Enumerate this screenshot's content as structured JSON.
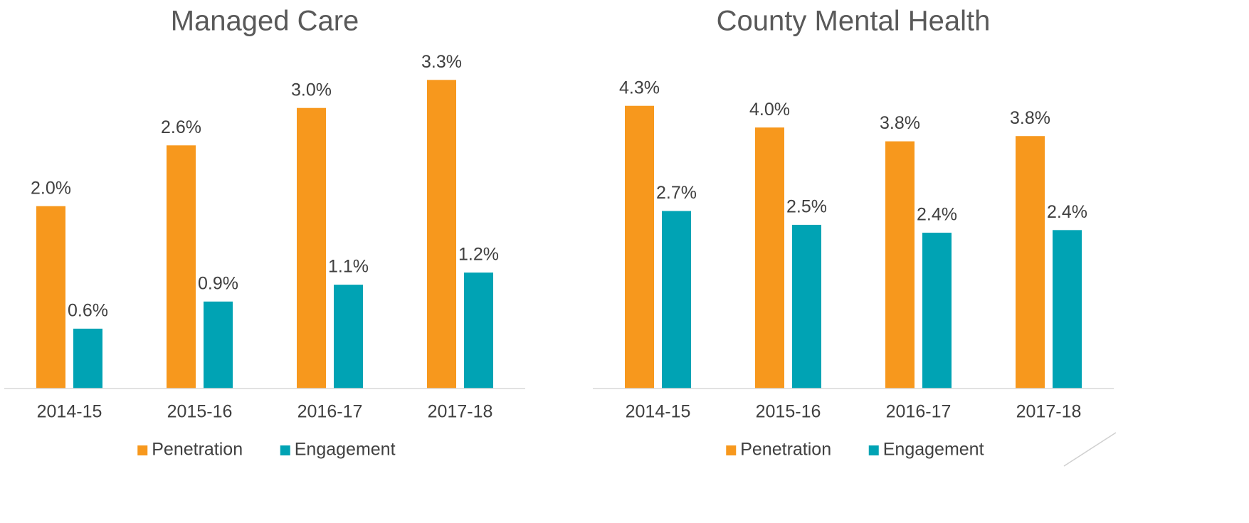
{
  "chart_data": [
    {
      "type": "bar",
      "title": "Managed Care",
      "categories": [
        "2014-15",
        "2015-16",
        "2016-17",
        "2017-18"
      ],
      "series": [
        {
          "name": "Penetration",
          "color": "#f7981d",
          "values": [
            1.95,
            2.6,
            3.0,
            3.3
          ],
          "value_labels": [
            "2.0%",
            "2.6%",
            "3.0%",
            "3.3%"
          ]
        },
        {
          "name": "Engagement",
          "color": "#00a3b4",
          "values": [
            0.64,
            0.93,
            1.11,
            1.24
          ],
          "value_labels": [
            "0.6%",
            "0.9%",
            "1.1%",
            "1.2%"
          ]
        }
      ],
      "ylim": [
        0,
        3.5
      ],
      "legend": "bottom"
    },
    {
      "type": "bar",
      "title": "County Mental Health",
      "categories": [
        "2014-15",
        "2015-16",
        "2016-17",
        "2017-18"
      ],
      "series": [
        {
          "name": "Penetration",
          "color": "#f7981d",
          "values": [
            4.3,
            3.97,
            3.76,
            3.84
          ],
          "value_labels": [
            "4.3%",
            "4.0%",
            "3.8%",
            "3.8%"
          ]
        },
        {
          "name": "Engagement",
          "color": "#00a3b4",
          "values": [
            2.7,
            2.49,
            2.37,
            2.41
          ],
          "value_labels": [
            "2.7%",
            "2.5%",
            "2.4%",
            "2.4%"
          ]
        }
      ],
      "ylim": [
        0,
        4.6
      ],
      "legend": "bottom"
    }
  ]
}
